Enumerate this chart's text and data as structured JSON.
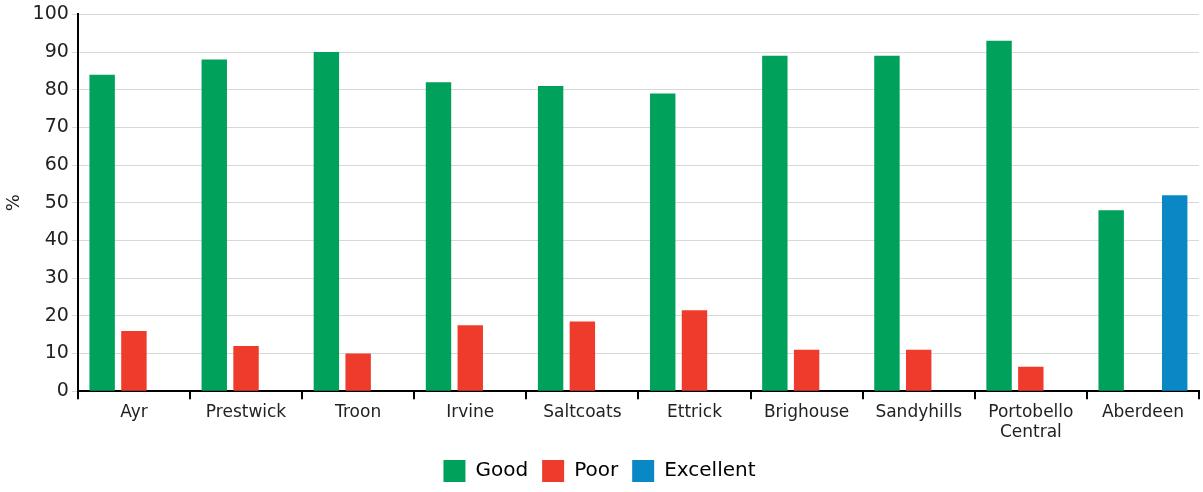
{
  "chart_data": {
    "type": "bar",
    "ylabel": "%",
    "categories": [
      "Ayr",
      "Prestwick",
      "Troon",
      "Irvine",
      "Saltcoats",
      "Ettrick",
      "Brighouse",
      "Sandyhills",
      "Portobello Central",
      "Aberdeen"
    ],
    "series": [
      {
        "name": "Good",
        "color": "#00a15b",
        "values": [
          84,
          88,
          90,
          82,
          81,
          79,
          89,
          89,
          93,
          48
        ]
      },
      {
        "name": "Poor",
        "color": "#ee3b2b",
        "values": [
          16,
          12,
          10,
          17.5,
          18.5,
          21.5,
          11,
          11,
          6.5,
          null
        ]
      },
      {
        "name": "Excellent",
        "color": "#0a88c6",
        "values": [
          null,
          null,
          null,
          null,
          null,
          null,
          null,
          null,
          null,
          52
        ]
      }
    ],
    "ylim": [
      0,
      100
    ],
    "yticks": [
      0,
      10,
      20,
      30,
      40,
      50,
      60,
      70,
      80,
      90,
      100
    ],
    "grid": "y",
    "legend": "bottom"
  }
}
